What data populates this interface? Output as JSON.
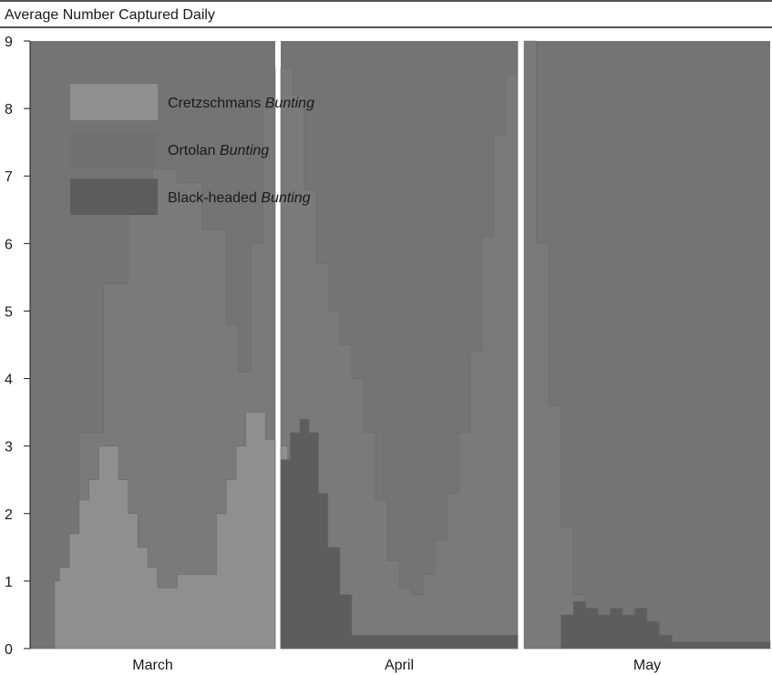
{
  "chart_data": {
    "type": "area",
    "title": "Average Number Captured Daily",
    "ylim": [
      0,
      9
    ],
    "yticks": [
      "0",
      "1",
      "2",
      "3",
      "4",
      "5",
      "6",
      "7",
      "8",
      "9"
    ],
    "x_panels": [
      "March",
      "April",
      "May"
    ],
    "legend": [
      {
        "name_plain": "Cretzschmans ",
        "name_italic": "Bunting",
        "color": "#8f8f8f"
      },
      {
        "name_plain": "Ortolan ",
        "name_italic": "Bunting",
        "color": "#717171"
      },
      {
        "name_plain": "Black-headed ",
        "name_italic": "Bunting",
        "color": "#5d5d5d"
      }
    ],
    "legend_position": "top-left",
    "series": [
      {
        "name": "Cretzschmans Bunting",
        "panel": "March",
        "x": [
          0.0,
          0.08,
          0.1,
          0.12,
          0.16,
          0.2,
          0.24,
          0.28,
          0.32,
          0.36,
          0.4,
          0.44,
          0.48,
          0.52,
          0.56,
          0.6,
          0.64,
          0.68,
          0.72,
          0.76,
          0.8,
          0.84,
          0.88,
          0.92,
          0.96,
          1.0
        ],
        "values": [
          0.0,
          0.0,
          1.0,
          1.2,
          1.7,
          2.2,
          2.5,
          3.0,
          3.0,
          2.5,
          2.0,
          1.5,
          1.2,
          0.9,
          0.9,
          1.1,
          1.1,
          1.1,
          1.1,
          2.0,
          2.5,
          3.0,
          3.5,
          3.5,
          3.1,
          3.0
        ]
      },
      {
        "name": "Cretzschmans Bunting",
        "panel": "April",
        "x": [
          0.0,
          0.03,
          0.07,
          0.1,
          0.14,
          0.18,
          0.22,
          0.26,
          0.3,
          1.0
        ],
        "values": [
          3.0,
          0.8,
          0.6,
          0.5,
          0.4,
          0.5,
          0.3,
          0.1,
          0.0,
          0.0
        ]
      },
      {
        "name": "Ortolan Bunting",
        "panel": "March",
        "x": [
          0.0,
          0.1,
          0.2,
          0.3,
          0.4,
          0.5,
          0.6,
          0.7,
          0.8,
          0.85,
          0.9,
          0.95,
          1.0
        ],
        "values": [
          0.0,
          1.0,
          3.2,
          5.4,
          6.8,
          7.1,
          6.9,
          6.2,
          4.8,
          4.1,
          6.0,
          8.0,
          8.6
        ]
      },
      {
        "name": "Ortolan Bunting",
        "panel": "April",
        "x": [
          0.0,
          0.05,
          0.1,
          0.15,
          0.2,
          0.25,
          0.3,
          0.35,
          0.4,
          0.45,
          0.5,
          0.55,
          0.6,
          0.65,
          0.7,
          0.75,
          0.8,
          0.85,
          0.9,
          0.95,
          1.0
        ],
        "values": [
          8.6,
          8.2,
          6.8,
          5.7,
          5.0,
          4.5,
          4.0,
          3.2,
          2.2,
          1.3,
          0.9,
          0.8,
          1.1,
          1.6,
          2.3,
          3.2,
          4.4,
          6.1,
          7.6,
          8.5,
          9.0
        ]
      },
      {
        "name": "Ortolan Bunting",
        "panel": "May",
        "x": [
          0.0,
          0.05,
          0.1,
          0.15,
          0.2,
          0.25,
          0.3,
          0.35,
          0.4,
          0.5,
          0.6,
          0.7,
          0.8,
          0.9,
          1.0
        ],
        "values": [
          9.0,
          6.0,
          3.6,
          1.8,
          0.8,
          0.6,
          0.5,
          0.4,
          0.3,
          0.2,
          0.1,
          0.1,
          0.0,
          0.0,
          0.0
        ]
      },
      {
        "name": "Black-headed Bunting",
        "panel": "April",
        "x": [
          0.0,
          0.04,
          0.08,
          0.12,
          0.16,
          0.2,
          0.25,
          0.3,
          1.0
        ],
        "values": [
          2.8,
          3.2,
          3.4,
          3.2,
          2.3,
          1.5,
          0.8,
          0.2,
          0.0
        ]
      },
      {
        "name": "Black-headed Bunting",
        "panel": "May",
        "x": [
          0.0,
          0.1,
          0.15,
          0.2,
          0.25,
          0.3,
          0.35,
          0.4,
          0.45,
          0.5,
          0.55,
          0.6,
          1.0
        ],
        "values": [
          0.0,
          0.0,
          0.5,
          0.7,
          0.6,
          0.5,
          0.6,
          0.5,
          0.6,
          0.4,
          0.2,
          0.1,
          0.0
        ]
      }
    ]
  }
}
